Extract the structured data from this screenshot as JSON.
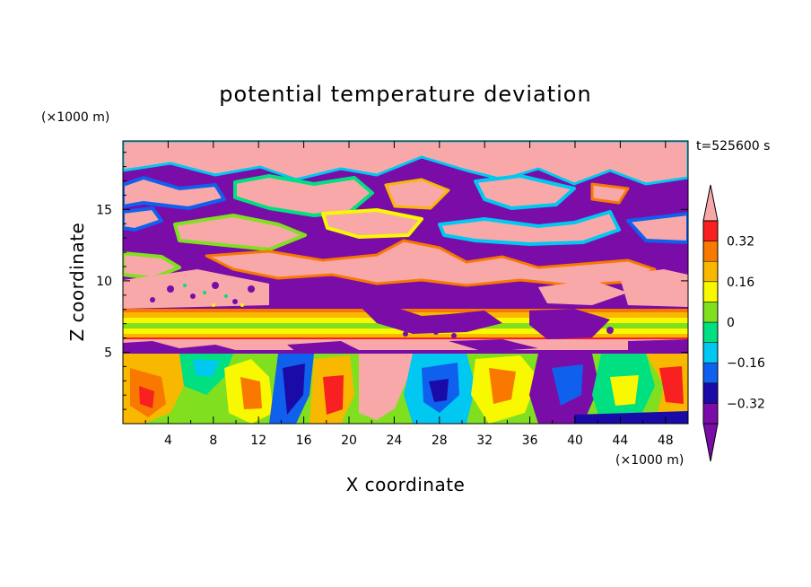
{
  "chart_data": {
    "type": "heatmap",
    "title": "potential temperature deviation",
    "xlabel": "X coordinate",
    "ylabel": "Z coordinate",
    "x_unit": "(×1000 m)",
    "y_unit": "(×1000 m)",
    "time_label": "t=525600 s",
    "xlim": [
      0,
      50
    ],
    "ylim": [
      0,
      19.8
    ],
    "x_ticks": [
      4,
      8,
      12,
      16,
      20,
      24,
      28,
      32,
      36,
      40,
      44,
      48
    ],
    "y_ticks": [
      5,
      10,
      15
    ],
    "colorbar": {
      "min": -0.4,
      "max": 0.4,
      "step": 0.08,
      "labels": [
        0.32,
        0.16,
        0,
        -0.16,
        -0.32
      ],
      "label_text": [
        "0.32",
        "0.16",
        "0",
        "−0.16",
        "−0.32"
      ],
      "colors": [
        "#7a0ca8",
        "#1a0aa8",
        "#1060ee",
        "#00c8f0",
        "#00e080",
        "#80e020",
        "#f8f800",
        "#f8b800",
        "#f87800",
        "#f82020",
        "#f8a8a8"
      ]
    }
  }
}
